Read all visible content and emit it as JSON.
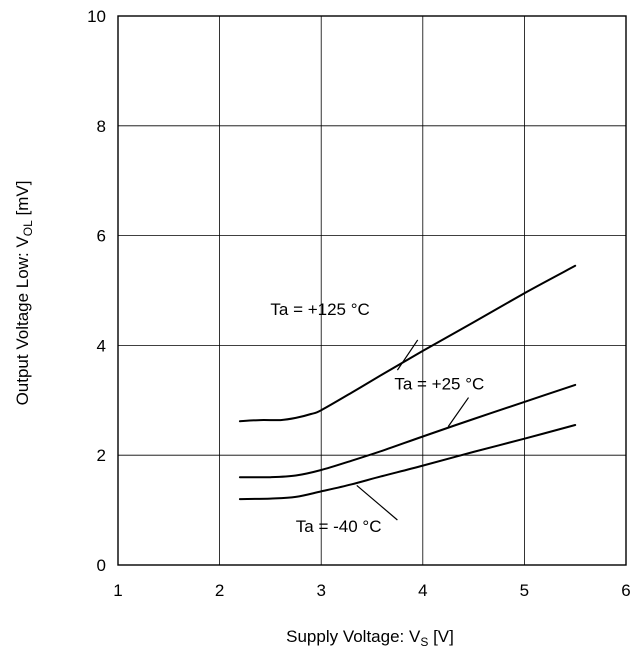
{
  "chart_data": {
    "type": "line",
    "xlabel": {
      "main": "Supply Voltage:  V",
      "sub": "S",
      "unit": " [V]"
    },
    "ylabel": {
      "main": "Output Voltage Low:  V",
      "sub": "OL",
      "unit": " [mV]"
    },
    "xlim": [
      1,
      6
    ],
    "ylim": [
      0,
      10
    ],
    "xticks": [
      "1",
      "2",
      "3",
      "4",
      "5",
      "6"
    ],
    "yticks": [
      "0",
      "2",
      "4",
      "6",
      "8",
      "10"
    ],
    "grid": true,
    "legend": "inline labels",
    "series": [
      {
        "name": "Ta = +125 °C",
        "x": [
          2.2,
          2.4,
          2.6,
          2.75,
          2.9,
          3.0,
          3.3,
          3.6,
          4.0,
          4.5,
          5.0,
          5.5
        ],
        "y": [
          2.62,
          2.64,
          2.64,
          2.68,
          2.75,
          2.82,
          3.14,
          3.47,
          3.9,
          4.42,
          4.95,
          5.45
        ]
      },
      {
        "name": "Ta = +25 °C",
        "x": [
          2.2,
          2.5,
          2.75,
          3.0,
          3.3,
          3.6,
          4.0,
          4.5,
          5.0,
          5.5
        ],
        "y": [
          1.6,
          1.6,
          1.63,
          1.73,
          1.9,
          2.08,
          2.34,
          2.66,
          2.97,
          3.28
        ]
      },
      {
        "name": "Ta = -40 °C",
        "x": [
          2.2,
          2.5,
          2.75,
          3.0,
          3.3,
          3.6,
          4.0,
          4.5,
          5.0,
          5.5
        ],
        "y": [
          1.2,
          1.21,
          1.24,
          1.34,
          1.47,
          1.62,
          1.81,
          2.06,
          2.3,
          2.55
        ]
      }
    ]
  }
}
